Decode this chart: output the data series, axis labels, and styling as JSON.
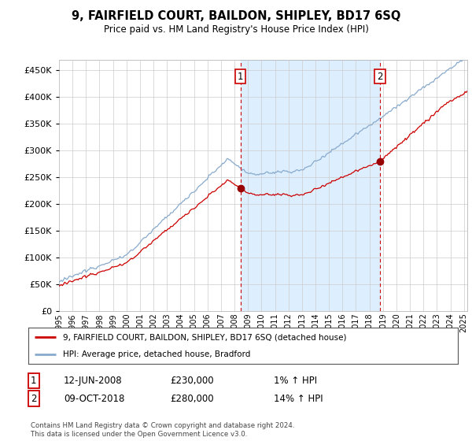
{
  "title": "9, FAIRFIELD COURT, BAILDON, SHIPLEY, BD17 6SQ",
  "subtitle": "Price paid vs. HM Land Registry's House Price Index (HPI)",
  "ytick_values": [
    0,
    50000,
    100000,
    150000,
    200000,
    250000,
    300000,
    350000,
    400000,
    450000
  ],
  "ylim": [
    0,
    470000
  ],
  "xlim_start": 1995.0,
  "xlim_end": 2025.25,
  "sale1_x": 2008.45,
  "sale1_y": 230000,
  "sale2_x": 2018.77,
  "sale2_y": 280000,
  "shaded_region_color": "#ddeeff",
  "legend_line1": "9, FAIRFIELD COURT, BAILDON, SHIPLEY, BD17 6SQ (detached house)",
  "legend_line2": "HPI: Average price, detached house, Bradford",
  "footnote": "Contains HM Land Registry data © Crown copyright and database right 2024.\nThis data is licensed under the Open Government Licence v3.0.",
  "price_line_color": "#cc0000",
  "hpi_line_color": "#88aacc",
  "vline_color": "#cc0000",
  "dot_color": "#990000",
  "background_color": "#ffffff",
  "plot_bg_color": "#ffffff",
  "grid_color": "#cccccc",
  "table_entry1_label": "1",
  "table_entry1_date": "12-JUN-2008",
  "table_entry1_price": "£230,000",
  "table_entry1_change": "1% ↑ HPI",
  "table_entry2_label": "2",
  "table_entry2_date": "09-OCT-2018",
  "table_entry2_price": "£280,000",
  "table_entry2_change": "14% ↑ HPI"
}
